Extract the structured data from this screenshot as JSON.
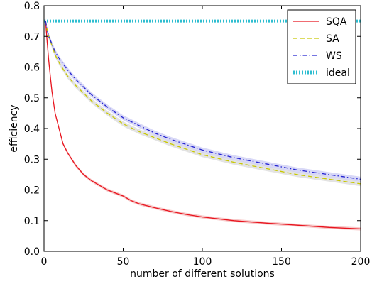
{
  "chart_data": {
    "type": "line",
    "title": "",
    "xlabel": "number of different solutions",
    "ylabel": "efficiency",
    "xlim": [
      0,
      200
    ],
    "ylim": [
      0.0,
      0.8
    ],
    "x_ticks": [
      0,
      50,
      100,
      150,
      200
    ],
    "x_tick_labels": [
      "0",
      "50",
      "100",
      "150",
      "200"
    ],
    "y_ticks": [
      0.0,
      0.1,
      0.2,
      0.3,
      0.4,
      0.5,
      0.6,
      0.7,
      0.8
    ],
    "y_tick_labels": [
      "0.0",
      "0.1",
      "0.2",
      "0.3",
      "0.4",
      "0.5",
      "0.6",
      "0.7",
      "0.8"
    ],
    "grid": false,
    "legend_position": "top-right",
    "series": [
      {
        "name": "SQA",
        "color": "#e8141e",
        "band_color": "#f0a0a0",
        "style": "solid",
        "x": [
          1,
          2,
          3,
          4,
          5,
          7,
          10,
          12,
          15,
          20,
          25,
          30,
          40,
          50,
          55,
          60,
          70,
          80,
          90,
          100,
          120,
          140,
          160,
          180,
          200
        ],
        "y": [
          0.75,
          0.68,
          0.62,
          0.57,
          0.52,
          0.45,
          0.39,
          0.35,
          0.32,
          0.28,
          0.25,
          0.23,
          0.2,
          0.18,
          0.165,
          0.155,
          0.142,
          0.13,
          0.12,
          0.112,
          0.1,
          0.092,
          0.085,
          0.078,
          0.073
        ],
        "band": 0.005
      },
      {
        "name": "SA",
        "color": "#c8c800",
        "band_color": "#cccccc",
        "style": "dashed",
        "x": [
          1,
          2,
          3,
          5,
          7,
          10,
          15,
          20,
          30,
          40,
          50,
          60,
          70,
          80,
          100,
          120,
          140,
          160,
          180,
          200
        ],
        "y": [
          0.75,
          0.72,
          0.7,
          0.67,
          0.64,
          0.61,
          0.57,
          0.54,
          0.49,
          0.45,
          0.415,
          0.39,
          0.37,
          0.35,
          0.315,
          0.29,
          0.27,
          0.25,
          0.235,
          0.22
        ],
        "band": 0.008
      },
      {
        "name": "WS",
        "color": "#2323d0",
        "band_color": "#b8b8f0",
        "style": "dashdot",
        "x": [
          1,
          2,
          3,
          5,
          7,
          10,
          15,
          20,
          30,
          40,
          50,
          60,
          70,
          80,
          100,
          120,
          140,
          160,
          180,
          200
        ],
        "y": [
          0.75,
          0.72,
          0.7,
          0.675,
          0.65,
          0.625,
          0.59,
          0.56,
          0.51,
          0.47,
          0.435,
          0.41,
          0.385,
          0.365,
          0.33,
          0.305,
          0.285,
          0.265,
          0.25,
          0.235
        ],
        "band": 0.008
      },
      {
        "name": "ideal",
        "color": "#2ebed0",
        "style": "dotted",
        "x": [
          0,
          200
        ],
        "y": [
          0.75,
          0.75
        ]
      }
    ]
  }
}
